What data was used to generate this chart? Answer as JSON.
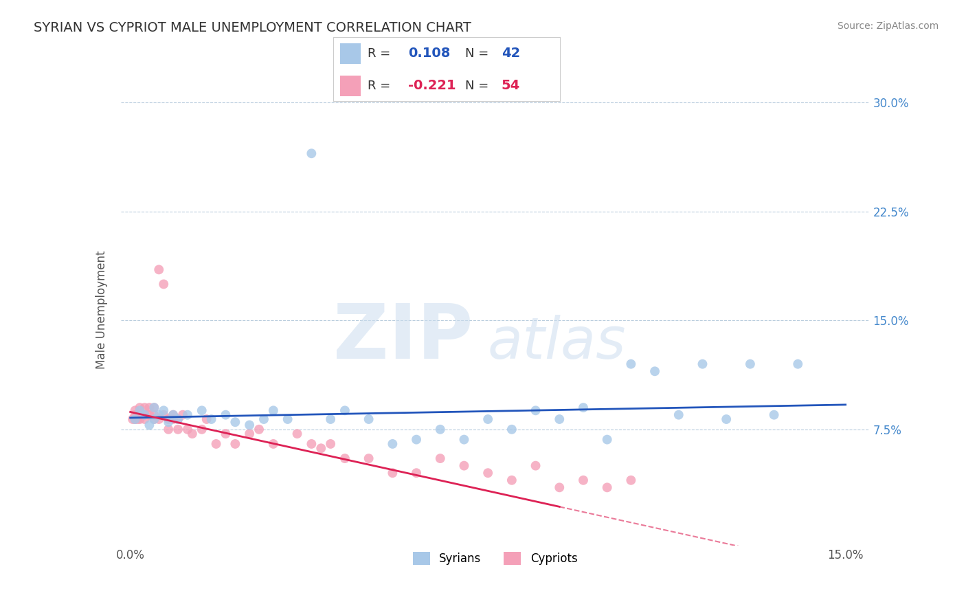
{
  "title": "SYRIAN VS CYPRIOT MALE UNEMPLOYMENT CORRELATION CHART",
  "source": "Source: ZipAtlas.com",
  "ylabel": "Male Unemployment",
  "xlim": [
    -0.002,
    0.155
  ],
  "ylim": [
    -0.005,
    0.32
  ],
  "syrian_R": 0.108,
  "syrian_N": 42,
  "cypriot_R": -0.221,
  "cypriot_N": 54,
  "syrian_color": "#a8c8e8",
  "cypriot_color": "#f4a0b8",
  "syrian_line_color": "#2255bb",
  "cypriot_line_color": "#dd2255",
  "background_color": "#ffffff",
  "grid_color": "#b8ccdd",
  "watermark_zip": "ZIP",
  "watermark_atlas": "atlas",
  "syrian_x": [
    0.001,
    0.002,
    0.003,
    0.004,
    0.005,
    0.005,
    0.006,
    0.007,
    0.008,
    0.009,
    0.01,
    0.012,
    0.015,
    0.017,
    0.02,
    0.022,
    0.025,
    0.028,
    0.03,
    0.033,
    0.038,
    0.042,
    0.045,
    0.05,
    0.055,
    0.06,
    0.065,
    0.07,
    0.075,
    0.08,
    0.085,
    0.09,
    0.095,
    0.1,
    0.105,
    0.11,
    0.115,
    0.12,
    0.125,
    0.13,
    0.135,
    0.14
  ],
  "syrian_y": [
    0.082,
    0.088,
    0.085,
    0.078,
    0.082,
    0.09,
    0.085,
    0.088,
    0.08,
    0.085,
    0.082,
    0.085,
    0.088,
    0.082,
    0.085,
    0.08,
    0.078,
    0.082,
    0.088,
    0.082,
    0.265,
    0.082,
    0.088,
    0.082,
    0.065,
    0.068,
    0.075,
    0.068,
    0.082,
    0.075,
    0.088,
    0.082,
    0.09,
    0.068,
    0.12,
    0.115,
    0.085,
    0.12,
    0.082,
    0.12,
    0.085,
    0.12
  ],
  "cypriot_x": [
    0.0005,
    0.001,
    0.001,
    0.001,
    0.0015,
    0.002,
    0.002,
    0.002,
    0.003,
    0.003,
    0.003,
    0.004,
    0.004,
    0.005,
    0.005,
    0.005,
    0.006,
    0.006,
    0.007,
    0.007,
    0.008,
    0.008,
    0.009,
    0.009,
    0.01,
    0.01,
    0.011,
    0.012,
    0.013,
    0.015,
    0.016,
    0.018,
    0.02,
    0.022,
    0.025,
    0.027,
    0.03,
    0.035,
    0.038,
    0.04,
    0.042,
    0.045,
    0.05,
    0.055,
    0.06,
    0.065,
    0.07,
    0.075,
    0.08,
    0.085,
    0.09,
    0.095,
    0.1,
    0.105
  ],
  "cypriot_y": [
    0.082,
    0.082,
    0.085,
    0.088,
    0.082,
    0.085,
    0.09,
    0.082,
    0.085,
    0.09,
    0.082,
    0.085,
    0.09,
    0.082,
    0.085,
    0.09,
    0.185,
    0.082,
    0.175,
    0.085,
    0.075,
    0.082,
    0.082,
    0.085,
    0.075,
    0.082,
    0.085,
    0.075,
    0.072,
    0.075,
    0.082,
    0.065,
    0.072,
    0.065,
    0.072,
    0.075,
    0.065,
    0.072,
    0.065,
    0.062,
    0.065,
    0.055,
    0.055,
    0.045,
    0.045,
    0.055,
    0.05,
    0.045,
    0.04,
    0.05,
    0.035,
    0.04,
    0.035,
    0.04
  ],
  "xtick_positions": [
    0.0,
    0.075,
    0.15
  ],
  "xtick_labels": [
    "0.0%",
    "",
    "15.0%"
  ],
  "ytick_right_positions": [
    0.075,
    0.15,
    0.225,
    0.3
  ],
  "ytick_right_labels": [
    "7.5%",
    "15.0%",
    "22.5%",
    "30.0%"
  ],
  "bottom_legend_labels": [
    "Syrians",
    "Cypriots"
  ]
}
